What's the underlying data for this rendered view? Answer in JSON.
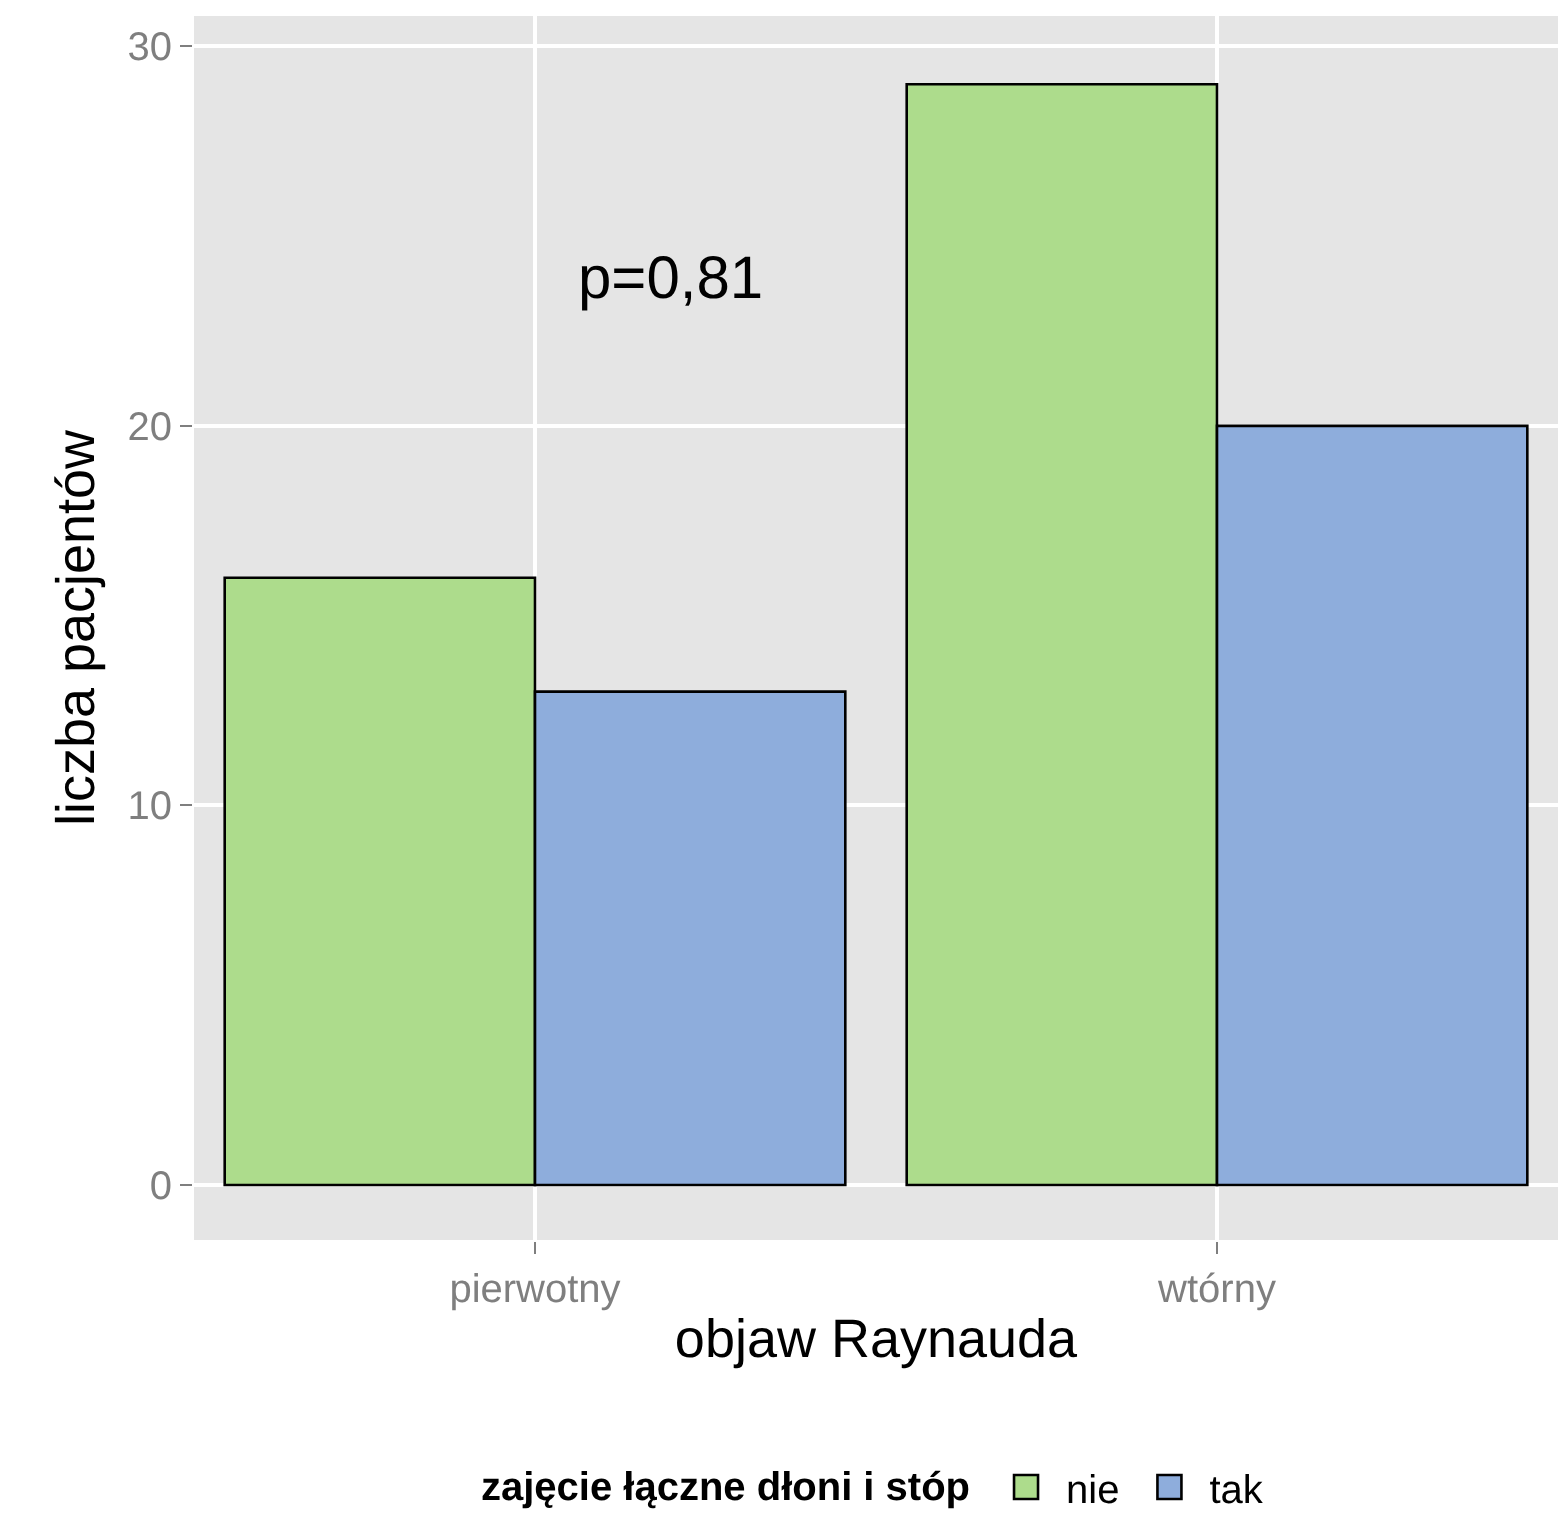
{
  "chart_data": {
    "type": "bar",
    "xlabel": "objaw Raynauda",
    "ylabel": "liczba pacjentów",
    "legend_title": "zajęcie łączne dłoni i stóp",
    "categories": [
      "pierwotny",
      "wtórny"
    ],
    "series": [
      {
        "name": "nie",
        "color": "#addc8c",
        "values": [
          16,
          29
        ]
      },
      {
        "name": "tak",
        "color": "#8eaddc",
        "values": [
          13,
          20
        ]
      }
    ],
    "ylim": [
      -1.45,
      30.8
    ],
    "yticks": [
      0,
      10,
      20,
      30
    ],
    "grid": true,
    "legend": "bottom",
    "annotations": [
      "p=0,81"
    ]
  }
}
